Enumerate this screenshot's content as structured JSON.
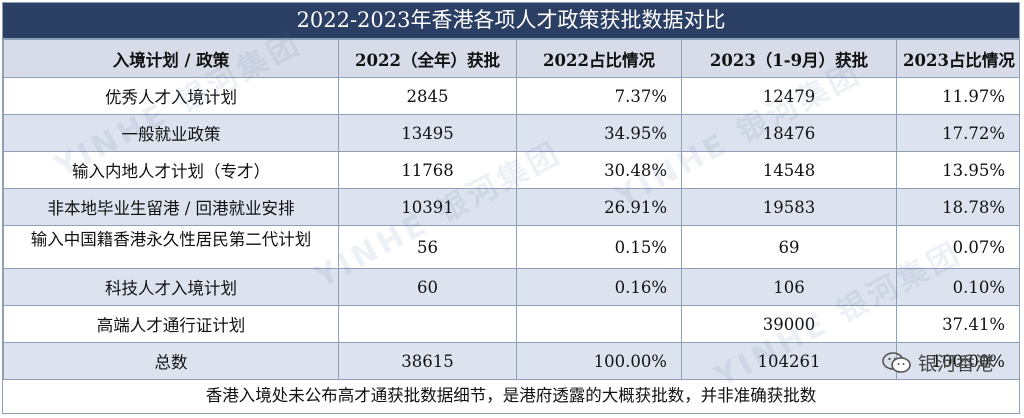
{
  "title": "2022-2023年香港各项人才政策获批数据对比",
  "headers": [
    "入境计划 / 政策",
    "2022（全年）获批",
    "2022占比情况",
    "2023（1-9月）获批",
    "2023占比情况"
  ],
  "rows": [
    {
      "name": "优秀人才入境计划",
      "v2022": "2845",
      "p2022": "7.37%",
      "v2023": "12479",
      "p2023": "11.97%"
    },
    {
      "name": "一般就业政策",
      "v2022": "13495",
      "p2022": "34.95%",
      "v2023": "18476",
      "p2023": "17.72%"
    },
    {
      "name": "输入内地人才计划（专才）",
      "v2022": "11768",
      "p2022": "30.48%",
      "v2023": "14548",
      "p2023": "13.95%"
    },
    {
      "name": "非本地毕业生留港 / 回港就业安排",
      "v2022": "10391",
      "p2022": "26.91%",
      "v2023": "19583",
      "p2023": "18.78%"
    },
    {
      "name": "输入中国籍香港永久性居民第二代计划",
      "v2022": "56",
      "p2022": "0.15%",
      "v2023": "69",
      "p2023": "0.07%"
    },
    {
      "name": "科技人才入境计划",
      "v2022": "60",
      "p2022": "0.16%",
      "v2023": "106",
      "p2023": "0.10%"
    },
    {
      "name": "高端人才通行证计划",
      "v2022": "",
      "p2022": "",
      "v2023": "39000",
      "p2023": "37.41%"
    },
    {
      "name": "总数",
      "v2022": "38615",
      "p2022": "100.00%",
      "v2023": "104261",
      "p2023": "100.00%"
    }
  ],
  "note": "香港入境处未公布高才通获批数据细节，是港府透露的大概获批数，并非准确获批数",
  "wechat_label": "银河香港",
  "watermark": "YINHE 银河集团",
  "colors": {
    "header_bar": "#2b3e63",
    "header_row": "#d7dce8",
    "stripe": "#dde3ee",
    "border": "#8da0b8"
  },
  "icons": {
    "wechat": "wechat-icon"
  }
}
